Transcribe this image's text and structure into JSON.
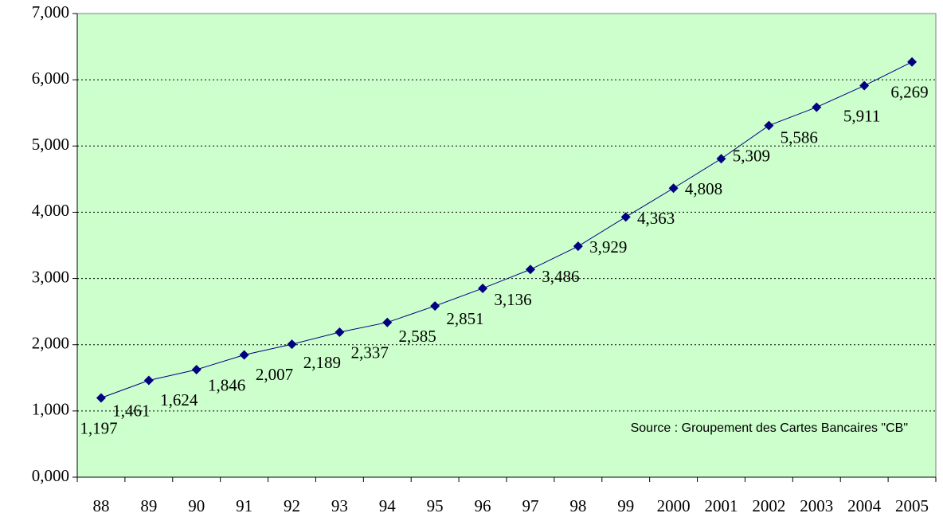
{
  "chart_data": {
    "type": "line",
    "categories": [
      "88",
      "89",
      "90",
      "91",
      "92",
      "93",
      "94",
      "95",
      "96",
      "97",
      "98",
      "99",
      "2000",
      "2001",
      "2002",
      "2003",
      "2004",
      "2005"
    ],
    "series": [
      {
        "name": null,
        "color": "#000080",
        "values": [
          1197,
          1461,
          1624,
          1846,
          2007,
          2189,
          2337,
          2585,
          2851,
          3136,
          3486,
          3929,
          4363,
          4808,
          5309,
          5586,
          5911,
          6269
        ],
        "value_labels": [
          "1,197",
          "1,461",
          "1,624",
          "1,846",
          "2,007",
          "2,189",
          "2,337",
          "2,585",
          "2,851",
          "3,136",
          "3,486",
          "3,929",
          "4,363",
          "4,808",
          "5,309",
          "5,586",
          "5,911",
          "6,269"
        ]
      }
    ],
    "ylim": [
      0,
      7000
    ],
    "yticks": [
      {
        "value": 0,
        "label": "0,000"
      },
      {
        "value": 1000,
        "label": "1,000"
      },
      {
        "value": 2000,
        "label": "2,000"
      },
      {
        "value": 3000,
        "label": "3,000"
      },
      {
        "value": 4000,
        "label": "4,000"
      },
      {
        "value": 5000,
        "label": "5,000"
      },
      {
        "value": 6000,
        "label": "6,000"
      },
      {
        "value": 7000,
        "label": "7,000"
      }
    ],
    "grid": true,
    "background": "#ccffcc",
    "annotations": [
      "Source : Groupement des Cartes Bancaires \"CB\""
    ]
  }
}
